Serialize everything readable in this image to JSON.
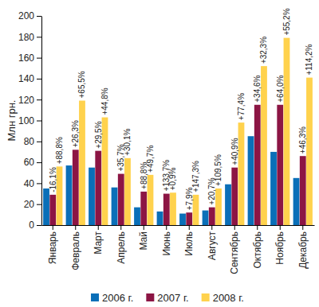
{
  "chart_data": {
    "type": "bar",
    "y_label": "Млн грн.",
    "categories": [
      "Январь",
      "Февраль",
      "Март",
      "Апрель",
      "Май",
      "Июнь",
      "Июль",
      "Август",
      "Сентябрь",
      "Октябрь",
      "Ноябрь",
      "Декабрь"
    ],
    "series": [
      {
        "name": "2006 г.",
        "color": "#0a6fb8",
        "values": [
          35,
          57,
          55,
          36,
          17,
          13,
          11,
          14,
          39,
          85,
          70,
          45
        ]
      },
      {
        "name": "2007 г.",
        "color": "#8c1544",
        "values": [
          29,
          72,
          71,
          49,
          32,
          30,
          12,
          17,
          55,
          115,
          115,
          66
        ],
        "change_labels": [
          "-16,1%",
          "+26,3%",
          "+29,5%",
          "+35,7%",
          "+88,8%",
          "+133,7%",
          "+7,9%",
          "+20,7%",
          "+40,9%",
          "+34,6%",
          "+64,0%",
          "+46,3%"
        ]
      },
      {
        "name": "2008 г.",
        "color": "#ffd24d",
        "values": [
          56,
          119,
          103,
          64,
          48,
          31,
          29,
          35,
          98,
          152,
          179,
          141
        ],
        "change_labels": [
          "+88,8%",
          "+65,5%",
          "+44,8%",
          "+30,1%",
          "+49,7%",
          "+0,9%",
          "+147,3%",
          "+109,5%",
          "+77,4%",
          "+32,3%",
          "+55,2%",
          "+114,2%"
        ]
      }
    ],
    "ylim": [
      0,
      200
    ],
    "yticks": [
      0,
      20,
      40,
      60,
      80,
      100,
      120,
      140,
      160,
      180,
      200
    ],
    "grid": false,
    "legend": "bottom"
  }
}
